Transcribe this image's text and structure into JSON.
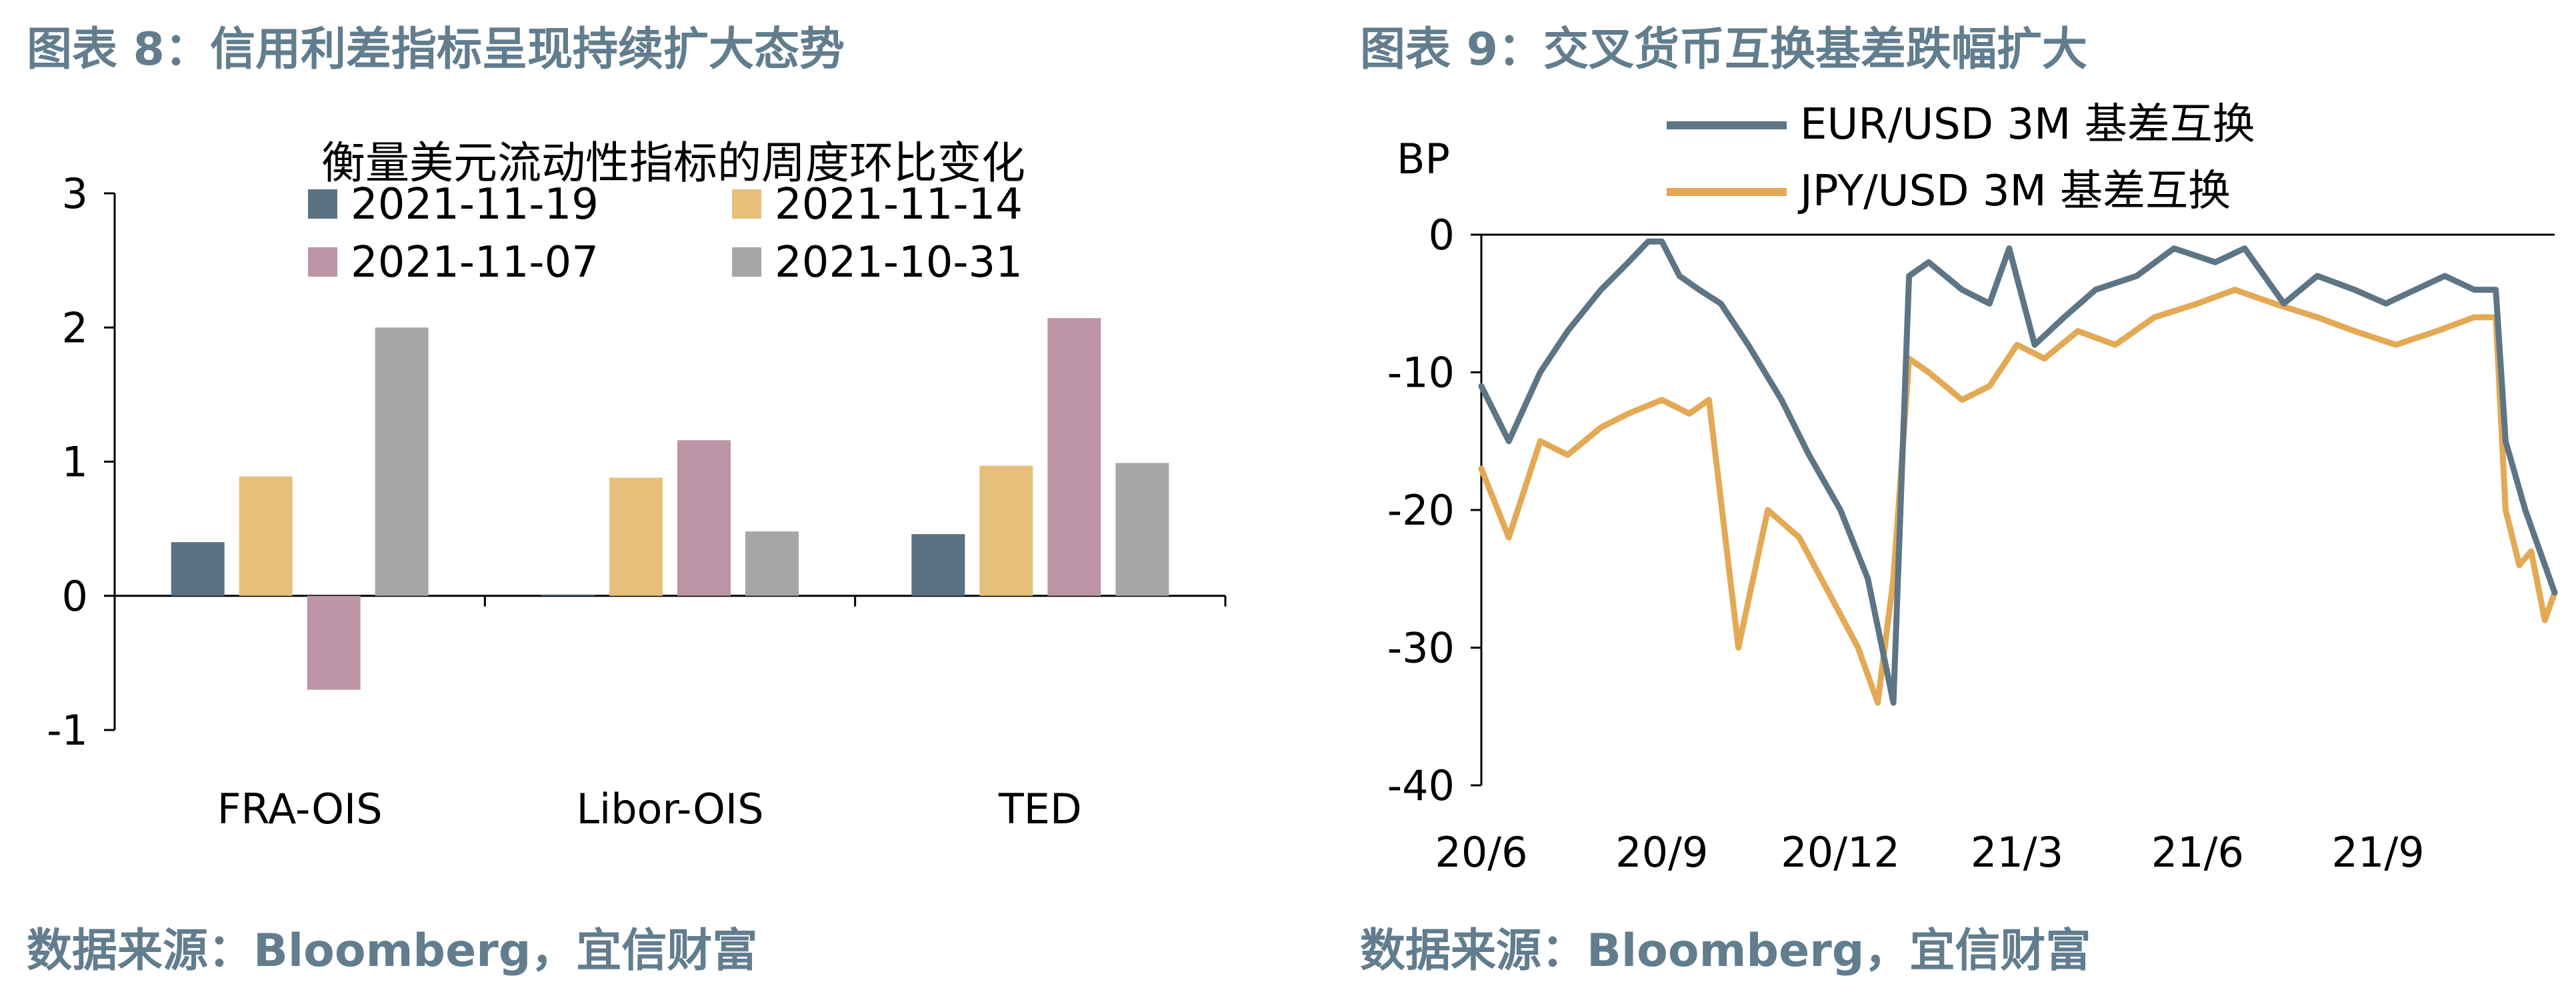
{
  "figure_left": {
    "title": "图表 8：信用利差指标呈现持续扩大态势",
    "source": "数据来源：Bloomberg，宜信财富"
  },
  "figure_right": {
    "title": "图表 9：交叉货币互换基差跌幅扩大",
    "source": "数据来源：Bloomberg，宜信财富"
  },
  "colors": {
    "s1119": "#5b7282",
    "s1114": "#e6c07a",
    "s1107": "#bc95a6",
    "s1031": "#a6a6a6",
    "eur": "#5d7585",
    "jpy": "#e3a955",
    "heading": "#617d8e"
  },
  "chart_data": [
    {
      "type": "bar",
      "title": "衡量美元流动性指标的周度环比变化",
      "categories": [
        "FRA-OIS",
        "Libor-OIS",
        "TED"
      ],
      "series": [
        {
          "name": "2021-11-19",
          "values": [
            0.4,
            0.01,
            0.46
          ]
        },
        {
          "name": "2021-11-14",
          "values": [
            0.89,
            0.88,
            0.97
          ]
        },
        {
          "name": "2021-11-07",
          "values": [
            -0.7,
            1.16,
            2.07
          ]
        },
        {
          "name": "2021-10-31",
          "values": [
            2.0,
            0.48,
            0.99
          ]
        }
      ],
      "ylim": [
        -1,
        3
      ],
      "yticks": [
        -1,
        0,
        1,
        2,
        3
      ],
      "legend": "top"
    },
    {
      "type": "line",
      "ylabel": "BP",
      "ylim": [
        -40,
        0
      ],
      "yticks": [
        0,
        -10,
        -20,
        -30,
        -40
      ],
      "xticks": [
        "20/6",
        "20/9",
        "20/12",
        "21/3",
        "21/6",
        "21/9"
      ],
      "xlim": [
        "2020-06-01",
        "2021-11-30"
      ],
      "legend": "top",
      "series": [
        {
          "name": "EUR/USD 3M 基差互换",
          "x": [
            "2020-06-01",
            "2020-06-15",
            "2020-07-01",
            "2020-07-15",
            "2020-08-01",
            "2020-08-15",
            "2020-08-25",
            "2020-09-01",
            "2020-09-10",
            "2020-09-20",
            "2020-10-01",
            "2020-10-15",
            "2020-11-01",
            "2020-11-15",
            "2020-12-01",
            "2020-12-15",
            "2020-12-28",
            "2021-01-05",
            "2021-01-15",
            "2021-02-01",
            "2021-02-15",
            "2021-02-25",
            "2021-03-10",
            "2021-03-25",
            "2021-04-10",
            "2021-05-01",
            "2021-05-20",
            "2021-06-10",
            "2021-06-25",
            "2021-07-15",
            "2021-08-01",
            "2021-08-20",
            "2021-09-05",
            "2021-09-20",
            "2021-10-05",
            "2021-10-20",
            "2021-10-31",
            "2021-11-05",
            "2021-11-15",
            "2021-11-30"
          ],
          "values": [
            -11,
            -15,
            -10,
            -7,
            -4,
            -2,
            -0.5,
            -0.5,
            -3,
            -4,
            -5,
            -8,
            -12,
            -16,
            -20,
            -25,
            -34,
            -3,
            -2,
            -4,
            -5,
            -1,
            -8,
            -6,
            -4,
            -3,
            -1,
            -2,
            -1,
            -5,
            -3,
            -4,
            -5,
            -4,
            -3,
            -4,
            -4,
            -15,
            -20,
            -26
          ]
        },
        {
          "name": "JPY/USD 3M 基差互换",
          "x": [
            "2020-06-01",
            "2020-06-15",
            "2020-07-01",
            "2020-07-15",
            "2020-08-01",
            "2020-08-15",
            "2020-09-01",
            "2020-09-15",
            "2020-09-25",
            "2020-10-10",
            "2020-10-25",
            "2020-11-10",
            "2020-11-25",
            "2020-12-10",
            "2020-12-20",
            "2020-12-28",
            "2021-01-05",
            "2021-01-15",
            "2021-02-01",
            "2021-02-15",
            "2021-03-01",
            "2021-03-15",
            "2021-04-01",
            "2021-04-20",
            "2021-05-10",
            "2021-06-01",
            "2021-06-20",
            "2021-07-10",
            "2021-08-01",
            "2021-08-20",
            "2021-09-10",
            "2021-10-01",
            "2021-10-20",
            "2021-10-31",
            "2021-11-05",
            "2021-11-12",
            "2021-11-18",
            "2021-11-25",
            "2021-11-30"
          ],
          "values": [
            -17,
            -22,
            -15,
            -16,
            -14,
            -13,
            -12,
            -13,
            -12,
            -30,
            -20,
            -22,
            -26,
            -30,
            -34,
            -25,
            -9,
            -10,
            -12,
            -11,
            -8,
            -9,
            -7,
            -8,
            -6,
            -5,
            -4,
            -5,
            -6,
            -7,
            -8,
            -7,
            -6,
            -6,
            -20,
            -24,
            -23,
            -28,
            -26
          ]
        }
      ]
    }
  ]
}
